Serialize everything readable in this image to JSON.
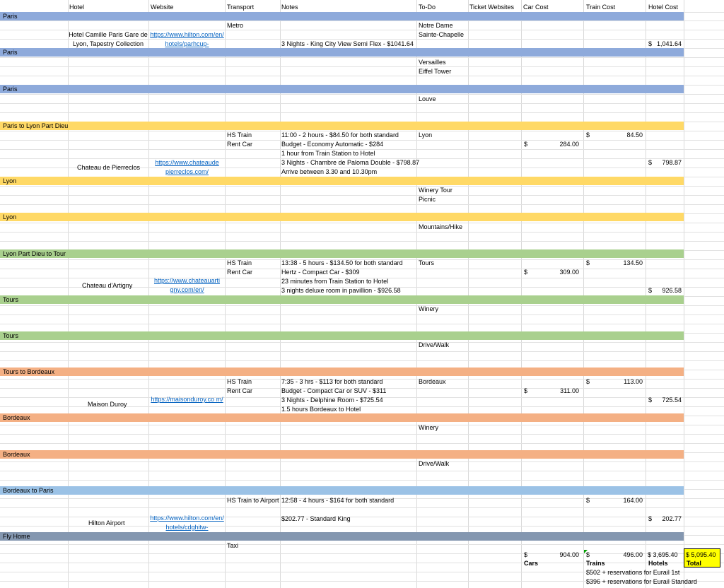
{
  "headers": {
    "hotel": "Hotel",
    "website": "Website",
    "transport": "Transport",
    "notes": "Notes",
    "todo": "To-Do",
    "ticket_websites": "Ticket Websites",
    "car_cost": "Car Cost",
    "train_cost": "Train Cost",
    "hotel_cost": "Hotel Cost"
  },
  "colors": {
    "paris": "#8eaadb",
    "lyon": "#ffd966",
    "tours": "#a9d08e",
    "bordeaux": "#f4b084",
    "bordeaux_to_paris": "#9bc2e6",
    "fly_home": "#8497b0",
    "grand_total_fill": "#ffff00",
    "link": "#0563c1"
  },
  "sections": {
    "paris1": {
      "label": "Paris",
      "hotel": "Hotel Camille Paris Gare de Lyon, Tapestry Collection",
      "website": "https://www.hilton.com/en/hotels/parhcup-",
      "transport": "Metro",
      "note": "3 Nights - King City View Semi Flex - $1041.64",
      "todo1": "Notre Dame",
      "todo2": "Sainte-Chapelle",
      "hotel_cost": "1,041.64"
    },
    "paris2": {
      "label": "Paris",
      "todo1": "Versailles",
      "todo2": "Eiffel Tower"
    },
    "paris3": {
      "label": "Paris",
      "todo1": "Louve"
    },
    "paris_to_lyon": {
      "label": "Paris to Lyon Part Dieu",
      "transport1": "HS Train",
      "transport2": "Rent Car",
      "note1": "11:00 - 2 hours - $84.50 for both standard",
      "note2": "Budget - Economy Automatic - $284",
      "note3": "1 hour from Train Station to Hotel",
      "note4": "3 Nights - Chambre de Paloma Double - $798.87",
      "note5": "Arrive between 3.30 and 10.30pm",
      "todo1": "Lyon",
      "hotel": "Chateau de Pierreclos",
      "website": "https://www.chateaude pierreclos.com/",
      "car_cost": "284.00",
      "train_cost": "84.50",
      "hotel_cost": "798.87"
    },
    "lyon1": {
      "label": "Lyon",
      "todo1": "Winery Tour",
      "todo2": "Picnic"
    },
    "lyon2": {
      "label": "Lyon",
      "todo1": "Mountains/Hike"
    },
    "lyon_to_tours": {
      "label": "Lyon Part Dieu to Tour",
      "transport1": "HS Train",
      "transport2": "Rent Car",
      "note1": "13:38 - 5 hours - $134.50 for both standard",
      "note2": "Hertz - Compact Car - $309",
      "note3": "23 minutes from Train Station to Hotel",
      "note4": "3 nights deluxe room in pavillion - $926.58",
      "todo1": "Tours",
      "hotel": "Chateau d'Artigny",
      "website": "https://www.chateauarti gny.com/en/",
      "car_cost": "309.00",
      "train_cost": "134.50",
      "hotel_cost": "926.58"
    },
    "tours1": {
      "label": "Tours",
      "todo1": "Winery"
    },
    "tours2": {
      "label": "Tours",
      "todo1": "Drive/Walk"
    },
    "tours_to_bordeaux": {
      "label": "Tours to Bordeaux",
      "transport1": "HS Train",
      "transport2": "Rent Car",
      "note1": "7:35 - 3 hrs - $113 for both standard",
      "note2": "Budget - Compact Car or SUV - $311",
      "note3": "3 Nights - Delphine Room - $725.54",
      "note4": "1.5 hours Bordeaux to Hotel",
      "todo1": "Bordeaux",
      "hotel": "Maison Duroy",
      "website": "https://maisonduroy.co m/",
      "car_cost": "311.00",
      "train_cost": "113.00",
      "hotel_cost": "725.54"
    },
    "bordeaux1": {
      "label": "Bordeaux",
      "todo1": "Winery"
    },
    "bordeaux2": {
      "label": "Bordeaux",
      "todo1": "Drive/Walk"
    },
    "bordeaux_to_paris": {
      "label": "Bordeaux to Paris",
      "transport1": "HS Train to Airport",
      "note1": "12:58 - 4 hours - $164 for both standard",
      "note2": "$202.77 - Standard King",
      "hotel": "Hilton Airport",
      "website": "https://www.hilton.com/en/hotels/cdghitw-",
      "train_cost": "164.00",
      "hotel_cost": "202.77"
    },
    "fly_home": {
      "label": "Fly Home",
      "transport1": "Taxi"
    }
  },
  "currency_symbol": "$",
  "totals": {
    "cars": "904.00",
    "trains": "496.00",
    "hotels": "$ 3,695.40",
    "grand": "$ 5,095.40",
    "cars_label": "Cars",
    "trains_label": "Trains",
    "hotels_label": "Hotels",
    "total_label": "Total",
    "eurail_1st": "$502 + reservations for Eurail 1st",
    "eurail_standard": "$396 + reservations for Eurail Standard"
  }
}
